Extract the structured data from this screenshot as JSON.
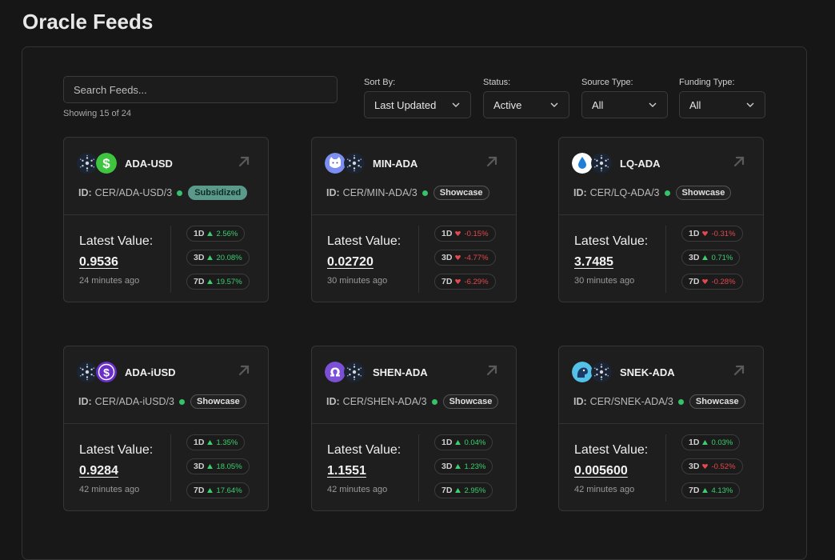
{
  "page": {
    "title": "Oracle Feeds"
  },
  "search": {
    "placeholder": "Search Feeds...",
    "showing": "Showing 15 of 24"
  },
  "filters": {
    "sort_by": {
      "label": "Sort By:",
      "value": "Last Updated"
    },
    "status": {
      "label": "Status:",
      "value": "Active"
    },
    "source_type": {
      "label": "Source Type:",
      "value": "All"
    },
    "funding_type": {
      "label": "Funding Type:",
      "value": "All"
    }
  },
  "colors": {
    "up": "#3ccf70",
    "down": "#e5484d",
    "active_dot": "#36c26a",
    "subsidized": "#5b9a8b"
  },
  "labels": {
    "id": "ID:",
    "latest_value": "Latest Value:"
  },
  "feeds": [
    {
      "name": "ADA-USD",
      "id": "CER/ADA-USD/3",
      "tag": "Subsidized",
      "value": "0.9536",
      "updated": "24 minutes ago",
      "icons": [
        "cardano-icon",
        "dollar-icon"
      ],
      "changes": [
        {
          "period": "1D",
          "dir": "up",
          "pct": "2.56%"
        },
        {
          "period": "3D",
          "dir": "up",
          "pct": "20.08%"
        },
        {
          "period": "7D",
          "dir": "up",
          "pct": "19.57%"
        }
      ]
    },
    {
      "name": "MIN-ADA",
      "id": "CER/MIN-ADA/3",
      "tag": "Showcase",
      "value": "0.02720",
      "updated": "30 minutes ago",
      "icons": [
        "minswap-cat-icon",
        "cardano-icon"
      ],
      "changes": [
        {
          "period": "1D",
          "dir": "down",
          "pct": "-0.15%"
        },
        {
          "period": "3D",
          "dir": "down",
          "pct": "-4.77%"
        },
        {
          "period": "7D",
          "dir": "down",
          "pct": "-6.29%"
        }
      ]
    },
    {
      "name": "LQ-ADA",
      "id": "CER/LQ-ADA/3",
      "tag": "Showcase",
      "value": "3.7485",
      "updated": "30 minutes ago",
      "icons": [
        "liqwid-drop-icon",
        "cardano-icon"
      ],
      "changes": [
        {
          "period": "1D",
          "dir": "down",
          "pct": "-0.31%"
        },
        {
          "period": "3D",
          "dir": "up",
          "pct": "0.71%"
        },
        {
          "period": "7D",
          "dir": "down",
          "pct": "-0.28%"
        }
      ]
    },
    {
      "name": "ADA-iUSD",
      "id": "CER/ADA-iUSD/3",
      "tag": "Showcase",
      "value": "0.9284",
      "updated": "42 minutes ago",
      "icons": [
        "cardano-icon",
        "iusd-dollar-icon"
      ],
      "changes": [
        {
          "period": "1D",
          "dir": "up",
          "pct": "1.35%"
        },
        {
          "period": "3D",
          "dir": "up",
          "pct": "18.05%"
        },
        {
          "period": "7D",
          "dir": "up",
          "pct": "17.64%"
        }
      ]
    },
    {
      "name": "SHEN-ADA",
      "id": "CER/SHEN-ADA/3",
      "tag": "Showcase",
      "value": "1.1551",
      "updated": "42 minutes ago",
      "icons": [
        "shen-omega-icon",
        "cardano-icon"
      ],
      "changes": [
        {
          "period": "1D",
          "dir": "up",
          "pct": "0.04%"
        },
        {
          "period": "3D",
          "dir": "up",
          "pct": "1.23%"
        },
        {
          "period": "7D",
          "dir": "up",
          "pct": "2.95%"
        }
      ]
    },
    {
      "name": "SNEK-ADA",
      "id": "CER/SNEK-ADA/3",
      "tag": "Showcase",
      "value": "0.005600",
      "updated": "42 minutes ago",
      "icons": [
        "snek-icon",
        "cardano-icon"
      ],
      "changes": [
        {
          "period": "1D",
          "dir": "up",
          "pct": "0.03%"
        },
        {
          "period": "3D",
          "dir": "down",
          "pct": "-0.52%"
        },
        {
          "period": "7D",
          "dir": "up",
          "pct": "4.13%"
        }
      ]
    }
  ]
}
